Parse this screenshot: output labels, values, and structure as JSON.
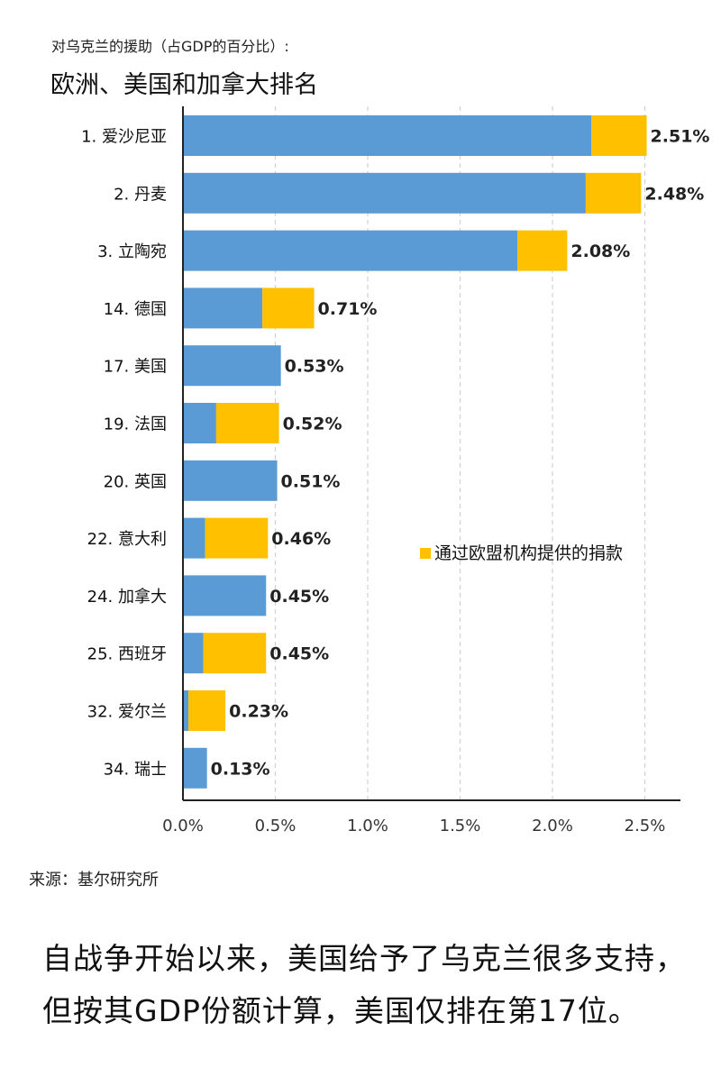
{
  "subtitle": "对乌克兰的援助（占GDP的百分比）:",
  "title": "欧洲、美国和加拿大排名",
  "source": "来源：基尔研究所",
  "caption": "自战争开始以来，美国给予了乌克兰很多支持，但按其GDP份额计算，美国仅排在第17位。",
  "colors": {
    "bilateral": "#5B9BD5",
    "eu": "#FFC000",
    "axis": "#222222",
    "grid": "#d0d0d0"
  },
  "chart_data": {
    "type": "bar",
    "orientation": "horizontal",
    "stacked": true,
    "categories": [
      "1. 爱沙尼亚",
      "2. 丹麦",
      "3. 立陶宛",
      "14. 德国",
      "17. 美国",
      "19. 法国",
      "20. 英国",
      "22. 意大利",
      "24. 加拿大",
      "25. 西班牙",
      "32. 爱尔兰",
      "34. 瑞士"
    ],
    "series": [
      {
        "name": "",
        "values": [
          2.21,
          2.18,
          1.81,
          0.43,
          0.53,
          0.18,
          0.51,
          0.12,
          0.45,
          0.11,
          0.03,
          0.13
        ]
      },
      {
        "name": "通过欧盟机构提供的捐款",
        "values": [
          0.3,
          0.3,
          0.27,
          0.28,
          0.0,
          0.34,
          0.0,
          0.34,
          0.0,
          0.34,
          0.2,
          0.0
        ]
      }
    ],
    "totals": [
      "2.51%",
      "2.48%",
      "2.08%",
      "0.71%",
      "0.53%",
      "0.52%",
      "0.51%",
      "0.46%",
      "0.45%",
      "0.45%",
      "0.23%",
      "0.13%"
    ],
    "xticks": [
      "0.0%",
      "0.5%",
      "1.0%",
      "1.5%",
      "2.0%",
      "2.5%"
    ],
    "xlim": [
      0,
      2.5
    ],
    "grid": true,
    "legend_position": "middle-right"
  }
}
